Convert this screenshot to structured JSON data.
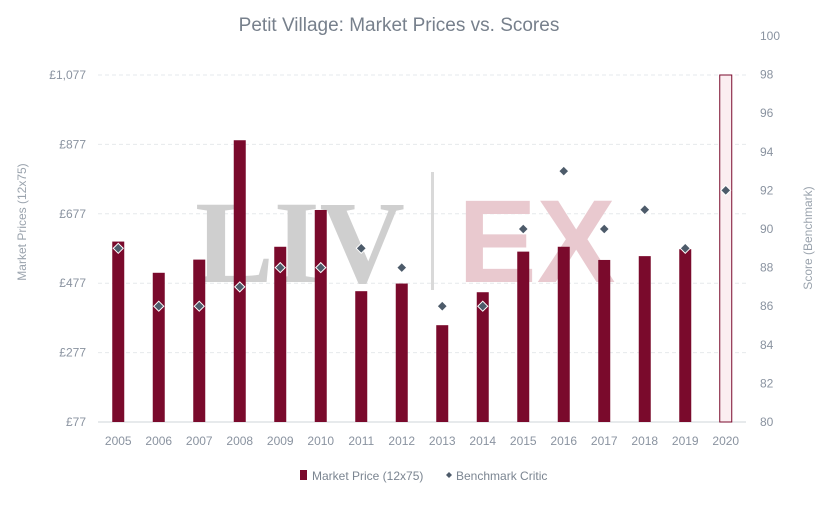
{
  "chart_data": {
    "type": "bar",
    "title": "Petit Village: Market Prices vs. Scores",
    "ylabel": "Market Prices (12x75)",
    "y2label": "Score (Benchmark)",
    "watermark": "LIV-EX",
    "categories": [
      "2005",
      "2006",
      "2007",
      "2008",
      "2009",
      "2010",
      "2011",
      "2012",
      "2013",
      "2014",
      "2015",
      "2016",
      "2017",
      "2018",
      "2019",
      "2020"
    ],
    "y_ticks": [
      "£77",
      "£277",
      "£477",
      "£677",
      "£877",
      "£1,077"
    ],
    "y_tick_values": [
      77,
      277,
      477,
      677,
      877,
      1077
    ],
    "ylim": [
      77,
      1077
    ],
    "y2_ticks": [
      "80",
      "82",
      "84",
      "86",
      "88",
      "90",
      "92",
      "94",
      "96",
      "98",
      "100"
    ],
    "y2lim": [
      80,
      100
    ],
    "grid": true,
    "legend_position": "bottom",
    "series": [
      {
        "name": "Market Price (12x75)",
        "kind": "bar",
        "axis": "left",
        "color": "#7a0a2c",
        "values": [
          597,
          507,
          545,
          889,
          582,
          688,
          454,
          476,
          356,
          451,
          568,
          582,
          544,
          555,
          575,
          1077
        ],
        "projected": [
          false,
          false,
          false,
          false,
          false,
          false,
          false,
          false,
          false,
          false,
          false,
          false,
          false,
          false,
          false,
          true
        ]
      },
      {
        "name": "Benchmark Critic",
        "kind": "scatter",
        "axis": "right",
        "color": "#4d5b6a",
        "values": [
          89,
          86,
          86,
          87,
          88,
          88,
          89,
          88,
          86,
          86,
          90,
          93,
          90,
          91,
          89,
          92
        ]
      }
    ]
  }
}
